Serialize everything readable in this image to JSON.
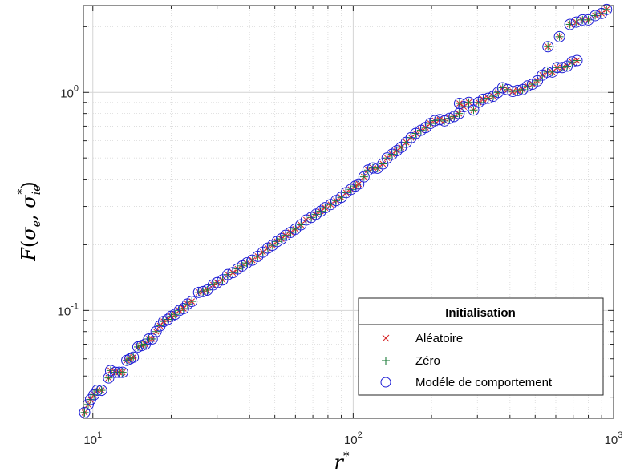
{
  "chart_data": {
    "type": "scatter",
    "xscale": "log",
    "yscale": "log",
    "xlim": [
      9.2,
      1000
    ],
    "ylim": [
      0.032,
      2.5
    ],
    "grid": true,
    "minor_grid": true,
    "xlabel_base": "r",
    "xlabel_sup": "*",
    "ylabel_script": "F",
    "ylabel_sigma": "σ",
    "ylabel_sub1": "e",
    "ylabel_sub2": "ie",
    "ylabel_sup": "*",
    "xticks": [
      {
        "value": 10,
        "base": "10",
        "exp": "1"
      },
      {
        "value": 100,
        "base": "10",
        "exp": "2"
      },
      {
        "value": 1000,
        "base": "10",
        "exp": "3"
      }
    ],
    "yticks": [
      {
        "value": 0.1,
        "base": "10",
        "exp": "-1"
      },
      {
        "value": 1,
        "base": "10",
        "exp": "0"
      }
    ],
    "legend": {
      "title": "Initialisation",
      "placement": "bottom-right"
    },
    "series": [
      {
        "name": "Aléatoire",
        "marker": "x",
        "color": "#d62728"
      },
      {
        "name": "Zéro",
        "marker": "+",
        "color": "#1e7d3c"
      },
      {
        "name": "Modéle de comportement",
        "marker": "o",
        "color": "#1f1fd6"
      }
    ],
    "points": [
      [
        9.3,
        0.034
      ],
      [
        9.6,
        0.037
      ],
      [
        9.8,
        0.039
      ],
      [
        10.1,
        0.041
      ],
      [
        10.4,
        0.043
      ],
      [
        10.8,
        0.043
      ],
      [
        11.5,
        0.049
      ],
      [
        11.7,
        0.053
      ],
      [
        12.2,
        0.052
      ],
      [
        12.6,
        0.052
      ],
      [
        13.0,
        0.052
      ],
      [
        13.5,
        0.059
      ],
      [
        13.9,
        0.06
      ],
      [
        14.3,
        0.061
      ],
      [
        14.9,
        0.068
      ],
      [
        15.4,
        0.069
      ],
      [
        15.9,
        0.07
      ],
      [
        16.4,
        0.074
      ],
      [
        16.9,
        0.074
      ],
      [
        17.5,
        0.08
      ],
      [
        18.1,
        0.085
      ],
      [
        18.7,
        0.089
      ],
      [
        19.4,
        0.091
      ],
      [
        20.0,
        0.094
      ],
      [
        20.7,
        0.096
      ],
      [
        21.5,
        0.1
      ],
      [
        22.3,
        0.102
      ],
      [
        23.1,
        0.107
      ],
      [
        24.0,
        0.11
      ],
      [
        25.5,
        0.121
      ],
      [
        26.5,
        0.122
      ],
      [
        27.5,
        0.124
      ],
      [
        29.0,
        0.131
      ],
      [
        30.0,
        0.134
      ],
      [
        31.5,
        0.138
      ],
      [
        33.0,
        0.146
      ],
      [
        34.5,
        0.149
      ],
      [
        36.0,
        0.155
      ],
      [
        37.5,
        0.16
      ],
      [
        39.0,
        0.165
      ],
      [
        41.0,
        0.17
      ],
      [
        43.0,
        0.177
      ],
      [
        45.0,
        0.185
      ],
      [
        47.0,
        0.193
      ],
      [
        49.0,
        0.199
      ],
      [
        51.0,
        0.207
      ],
      [
        53.0,
        0.213
      ],
      [
        55.0,
        0.221
      ],
      [
        57.5,
        0.228
      ],
      [
        60.0,
        0.236
      ],
      [
        63.0,
        0.247
      ],
      [
        66.0,
        0.26
      ],
      [
        69.0,
        0.267
      ],
      [
        72.0,
        0.276
      ],
      [
        75.0,
        0.285
      ],
      [
        78.0,
        0.296
      ],
      [
        82.0,
        0.306
      ],
      [
        86.0,
        0.319
      ],
      [
        90.0,
        0.33
      ],
      [
        94.0,
        0.347
      ],
      [
        98.0,
        0.359
      ],
      [
        102.0,
        0.372
      ],
      [
        105.0,
        0.38
      ],
      [
        110.0,
        0.41
      ],
      [
        114.0,
        0.44
      ],
      [
        119.0,
        0.45
      ],
      [
        124.0,
        0.449
      ],
      [
        130.0,
        0.47
      ],
      [
        135.0,
        0.5
      ],
      [
        141.0,
        0.52
      ],
      [
        147.0,
        0.54
      ],
      [
        153.0,
        0.56
      ],
      [
        160.0,
        0.59
      ],
      [
        167.0,
        0.62
      ],
      [
        174.0,
        0.648
      ],
      [
        182.0,
        0.67
      ],
      [
        190.0,
        0.69
      ],
      [
        198.0,
        0.72
      ],
      [
        206.0,
        0.742
      ],
      [
        215.0,
        0.75
      ],
      [
        224.0,
        0.74
      ],
      [
        234.0,
        0.76
      ],
      [
        244.0,
        0.775
      ],
      [
        255.0,
        0.8
      ],
      [
        266.0,
        0.86
      ],
      [
        278.0,
        0.9
      ],
      [
        290.0,
        0.83
      ],
      [
        303.0,
        0.9
      ],
      [
        316.0,
        0.93
      ],
      [
        330.0,
        0.94
      ],
      [
        345.0,
        0.96
      ],
      [
        360.0,
        1.0
      ],
      [
        375.0,
        1.05
      ],
      [
        392.0,
        1.03
      ],
      [
        410.0,
        1.01
      ],
      [
        428.0,
        1.02
      ],
      [
        447.0,
        1.03
      ],
      [
        467.0,
        1.07
      ],
      [
        488.0,
        1.09
      ],
      [
        510.0,
        1.13
      ],
      [
        533.0,
        1.2
      ],
      [
        557.0,
        1.24
      ],
      [
        582.0,
        1.24
      ],
      [
        608.0,
        1.3
      ],
      [
        635.0,
        1.3
      ],
      [
        663.0,
        1.32
      ],
      [
        693.0,
        1.38
      ],
      [
        724.0,
        1.4
      ],
      [
        256.0,
        0.89
      ],
      [
        560.0,
        1.62
      ],
      [
        620.0,
        1.8
      ],
      [
        680.0,
        2.05
      ],
      [
        720.0,
        2.1
      ],
      [
        760.0,
        2.15
      ],
      [
        800.0,
        2.15
      ],
      [
        850.0,
        2.25
      ],
      [
        900.0,
        2.3
      ],
      [
        940.0,
        2.4
      ]
    ]
  }
}
